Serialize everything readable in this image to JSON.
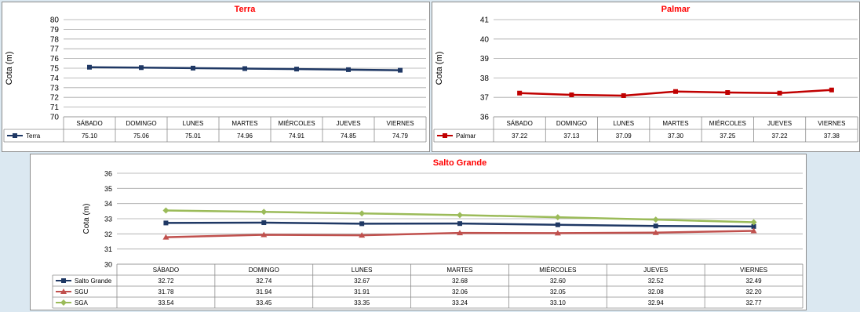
{
  "chart_data": [
    {
      "type": "line",
      "title": "Terra",
      "ylabel": "Cota (m)",
      "xlabel": "",
      "ylim": [
        70,
        80
      ],
      "yticks": [
        70,
        71,
        72,
        73,
        74,
        75,
        76,
        77,
        78,
        79,
        80
      ],
      "grid": true,
      "legend": "data-table",
      "categories": [
        "SÁBADO",
        "DOMINGO",
        "LUNES",
        "MARTES",
        "MIÉRCOLES",
        "JUEVES",
        "VIERNES"
      ],
      "series": [
        {
          "name": "Terra",
          "color": "#1f3864",
          "marker": "square",
          "values": [
            75.1,
            75.06,
            75.01,
            74.96,
            74.91,
            74.85,
            74.79
          ],
          "labels": [
            "75.10",
            "75.06",
            "75.01",
            "74.96",
            "74.91",
            "74.85",
            "74.79"
          ]
        }
      ]
    },
    {
      "type": "line",
      "title": "Palmar",
      "ylabel": "Cota (m)",
      "xlabel": "",
      "ylim": [
        36,
        41
      ],
      "yticks": [
        36,
        37,
        38,
        39,
        40,
        41
      ],
      "grid": true,
      "legend": "data-table",
      "categories": [
        "SÁBADO",
        "DOMINGO",
        "LUNES",
        "MARTES",
        "MIÉRCOLES",
        "JUEVES",
        "VIERNES"
      ],
      "series": [
        {
          "name": "Palmar",
          "color": "#c00000",
          "marker": "square",
          "values": [
            37.22,
            37.13,
            37.09,
            37.3,
            37.25,
            37.22,
            37.38
          ],
          "labels": [
            "37.22",
            "37.13",
            "37.09",
            "37.30",
            "37.25",
            "37.22",
            "37.38"
          ]
        }
      ]
    },
    {
      "type": "line",
      "title": "Salto Grande",
      "ylabel": "Cota (m)",
      "xlabel": "",
      "ylim": [
        30,
        36
      ],
      "yticks": [
        30,
        31,
        32,
        33,
        34,
        35,
        36
      ],
      "grid": true,
      "legend": "data-table",
      "categories": [
        "SÁBADO",
        "DOMINGO",
        "LUNES",
        "MARTES",
        "MIÉRCOLES",
        "JUEVES",
        "VIERNES"
      ],
      "series": [
        {
          "name": "Salto Grande",
          "color": "#1f3864",
          "marker": "square",
          "values": [
            32.72,
            32.74,
            32.67,
            32.68,
            32.6,
            32.52,
            32.49
          ],
          "labels": [
            "32.72",
            "32.74",
            "32.67",
            "32.68",
            "32.60",
            "32.52",
            "32.49"
          ]
        },
        {
          "name": "SGU",
          "color": "#c0504d",
          "marker": "triangle",
          "values": [
            31.78,
            31.94,
            31.91,
            32.06,
            32.05,
            32.08,
            32.2
          ],
          "labels": [
            "31.78",
            "31.94",
            "31.91",
            "32.06",
            "32.05",
            "32.08",
            "32.20"
          ]
        },
        {
          "name": "SGA",
          "color": "#9bbb59",
          "marker": "diamond",
          "values": [
            33.54,
            33.45,
            33.35,
            33.24,
            33.1,
            32.94,
            32.77
          ],
          "labels": [
            "33.54",
            "33.45",
            "33.35",
            "33.24",
            "33.10",
            "32.94",
            "32.77"
          ]
        }
      ]
    }
  ]
}
